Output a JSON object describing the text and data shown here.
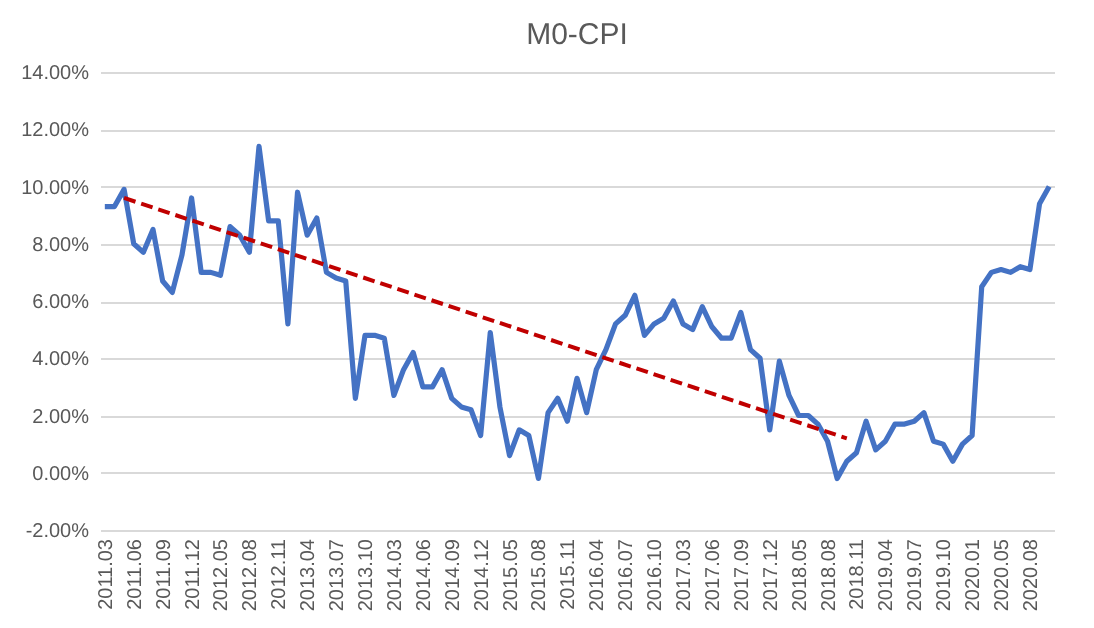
{
  "chart_data": {
    "type": "line",
    "title": "M0-CPI",
    "categories": [
      "2011.03",
      null,
      null,
      "2011.06",
      null,
      null,
      "2011.09",
      null,
      null,
      "2011.12",
      null,
      null,
      "2012.05",
      null,
      null,
      "2012.08",
      null,
      null,
      "2012.11",
      null,
      null,
      "2013.04",
      null,
      null,
      "2013.07",
      null,
      null,
      "2013.10",
      null,
      null,
      "2014.03",
      null,
      null,
      "2014.06",
      null,
      null,
      "2014.09",
      null,
      null,
      "2014.12",
      null,
      null,
      "2015.05",
      null,
      null,
      "2015.08",
      null,
      null,
      "2015.11",
      null,
      null,
      "2016.04",
      null,
      null,
      "2016.07",
      null,
      null,
      "2016.10",
      null,
      null,
      "2017.03",
      null,
      null,
      "2017.06",
      null,
      null,
      "2017.09",
      null,
      null,
      "2017.12",
      null,
      null,
      "2018.05",
      null,
      null,
      "2018.08",
      null,
      null,
      "2018.11",
      null,
      null,
      "2019.04",
      null,
      null,
      "2019.07",
      null,
      null,
      "2019.10",
      null,
      null,
      "2020.01",
      null,
      null,
      "2020.05",
      null,
      null,
      "2020.08",
      null,
      null
    ],
    "series": [
      {
        "color": "#4472c4",
        "values": [
          9.3,
          9.3,
          9.9,
          8.0,
          7.7,
          8.5,
          6.7,
          6.3,
          7.6,
          9.6,
          7.0,
          7.0,
          6.9,
          8.6,
          8.3,
          7.7,
          11.4,
          8.8,
          8.8,
          5.2,
          9.8,
          8.3,
          8.9,
          7.0,
          6.8,
          6.7,
          2.6,
          4.8,
          4.8,
          4.7,
          2.7,
          3.6,
          4.2,
          3.0,
          3.0,
          3.6,
          2.6,
          2.3,
          2.2,
          1.3,
          4.9,
          2.3,
          0.6,
          1.5,
          1.3,
          -0.2,
          2.1,
          2.6,
          1.8,
          3.3,
          2.1,
          3.6,
          4.3,
          5.2,
          5.5,
          6.2,
          4.8,
          5.2,
          5.4,
          6.0,
          5.2,
          5.0,
          5.8,
          5.1,
          4.7,
          4.7,
          5.6,
          4.3,
          4.0,
          1.5,
          3.9,
          2.7,
          2.0,
          2.0,
          1.7,
          1.1,
          -0.2,
          0.4,
          0.7,
          1.8,
          0.8,
          1.1,
          1.7,
          1.7,
          1.8,
          2.1,
          1.1,
          1.0,
          0.4,
          1.0,
          1.3,
          6.5,
          7.0,
          7.1,
          7.0,
          7.2,
          7.1,
          9.4,
          10.0
        ]
      },
      {
        "type": "line",
        "line_style": "dashed",
        "color": "#c00000",
        "values": [
          null,
          null,
          9.6,
          null,
          null,
          null,
          null,
          null,
          null,
          null,
          null,
          null,
          null,
          null,
          null,
          null,
          null,
          null,
          null,
          null,
          null,
          null,
          null,
          null,
          null,
          null,
          null,
          null,
          null,
          null,
          null,
          null,
          null,
          null,
          null,
          null,
          null,
          null,
          null,
          null,
          null,
          null,
          null,
          null,
          null,
          null,
          null,
          null,
          null,
          null,
          null,
          null,
          null,
          null,
          null,
          null,
          null,
          null,
          null,
          null,
          null,
          null,
          null,
          null,
          null,
          null,
          null,
          null,
          null,
          null,
          null,
          null,
          null,
          null,
          null,
          null,
          null,
          1.2,
          null,
          null,
          null,
          null,
          null,
          null,
          null,
          null,
          null,
          null,
          null,
          null,
          null,
          null,
          null,
          null,
          null,
          null,
          null,
          null,
          null
        ]
      }
    ],
    "ylim": [
      -2,
      14
    ],
    "yticks": [
      {
        "value": -2,
        "label": "-2.00%"
      },
      {
        "value": 0,
        "label": "0.00%"
      },
      {
        "value": 2,
        "label": "2.00%"
      },
      {
        "value": 4,
        "label": "4.00%"
      },
      {
        "value": 6,
        "label": "6.00%"
      },
      {
        "value": 8,
        "label": "8.00%"
      },
      {
        "value": 10,
        "label": "10.00%"
      },
      {
        "value": 12,
        "label": "12.00%"
      },
      {
        "value": 14,
        "label": "14.00%"
      }
    ],
    "grid": "y"
  }
}
